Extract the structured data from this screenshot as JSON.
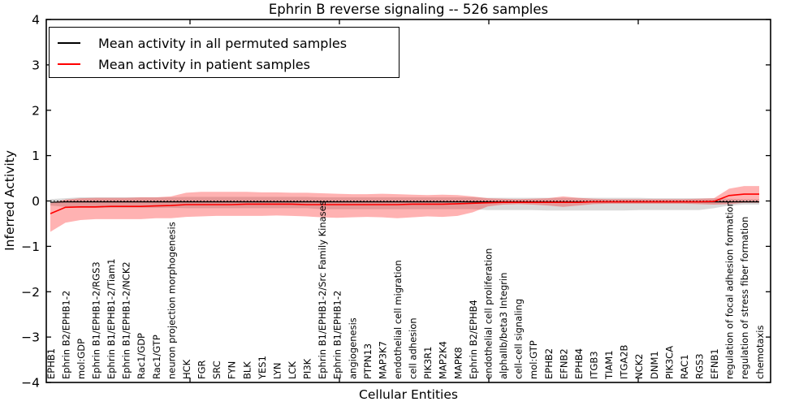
{
  "chart_data": {
    "type": "line",
    "title": "Ephrin B reverse signaling -- 526 samples",
    "xlabel": "Cellular Entities",
    "ylabel": "Inferred Activity",
    "ylim": [
      -4,
      4
    ],
    "grid": false,
    "legend_position": "upper left",
    "yticks": [
      {
        "value": 4,
        "label": "4"
      },
      {
        "value": 3,
        "label": "3"
      },
      {
        "value": 2,
        "label": "2"
      },
      {
        "value": 1,
        "label": "1"
      },
      {
        "value": 0,
        "label": "0"
      },
      {
        "value": -1,
        "label": "−1"
      },
      {
        "value": -2,
        "label": "−2"
      },
      {
        "value": -3,
        "label": "−3"
      },
      {
        "value": -4,
        "label": "−4"
      }
    ],
    "legend": [
      {
        "label": "Mean activity in all permuted samples",
        "color": "#000000"
      },
      {
        "label": "Mean activity in patient samples",
        "color": "#ff0000"
      }
    ],
    "colors": {
      "permuted_line": "#000000",
      "patient_line": "#ff0000",
      "permuted_band": "#787878",
      "patient_band": "#ff0000",
      "zero_line": "#000000"
    },
    "categories": [
      "EPHB1",
      "Ephrin B2/EPHB1-2",
      "mol:GDP",
      "Ephrin B1/EPHB1-2/RGS3",
      "Ephrin B1/EPHB1-2/Tiam1",
      "Ephrin B1/EPHB1-2/NCK2",
      "Rac1/GDP",
      "Rac1/GTP",
      "neuron projection morphogenesis",
      "HCK",
      "FGR",
      "SRC",
      "FYN",
      "BLK",
      "YES1",
      "LYN",
      "LCK",
      "PI3K",
      "Ephrin B1/EPHB1-2/Src Family Kinases",
      "Ephrin B1/EPHB1-2",
      "angiogenesis",
      "PTPN13",
      "MAP3K7",
      "endothelial cell migration",
      "cell adhesion",
      "PIK3R1",
      "MAP2K4",
      "MAPK8",
      "Ephrin B2/EPHB4",
      "endothelial cell proliferation",
      "alphaIIb/beta3 Integrin",
      "cell-cell signaling",
      "mol:GTP",
      "EPHB2",
      "EFNB2",
      "EPHB4",
      "ITGB3",
      "TIAM1",
      "ITGA2B",
      "NCK2",
      "DNM1",
      "PIK3CA",
      "RAC1",
      "RGS3",
      "EFNB1",
      "regulation of focal adhesion formation",
      "regulation of stress fiber formation",
      "chemotaxis"
    ],
    "series": [
      {
        "name": "Mean activity in all permuted samples",
        "values": [
          -0.03,
          -0.02,
          -0.02,
          -0.02,
          -0.02,
          -0.02,
          -0.02,
          -0.02,
          -0.02,
          -0.02,
          -0.02,
          -0.02,
          -0.02,
          -0.02,
          -0.02,
          -0.02,
          -0.02,
          -0.02,
          -0.02,
          -0.02,
          -0.02,
          -0.02,
          -0.02,
          -0.02,
          -0.02,
          -0.02,
          -0.02,
          -0.02,
          -0.02,
          -0.02,
          -0.02,
          -0.02,
          -0.02,
          -0.02,
          -0.02,
          -0.02,
          -0.02,
          -0.02,
          -0.02,
          -0.02,
          -0.02,
          -0.02,
          -0.02,
          -0.02,
          -0.02,
          -0.02,
          -0.02,
          -0.02
        ]
      },
      {
        "name": "Mean activity in patient samples",
        "values": [
          -0.28,
          -0.14,
          -0.13,
          -0.13,
          -0.12,
          -0.12,
          -0.12,
          -0.11,
          -0.1,
          -0.08,
          -0.08,
          -0.08,
          -0.08,
          -0.07,
          -0.07,
          -0.07,
          -0.07,
          -0.08,
          -0.08,
          -0.08,
          -0.08,
          -0.08,
          -0.08,
          -0.08,
          -0.07,
          -0.07,
          -0.07,
          -0.06,
          -0.05,
          -0.04,
          -0.03,
          -0.03,
          -0.03,
          -0.03,
          -0.03,
          -0.03,
          -0.02,
          -0.02,
          -0.02,
          -0.02,
          -0.02,
          -0.02,
          -0.02,
          -0.02,
          -0.01,
          0.12,
          0.15,
          0.15
        ]
      }
    ],
    "bands": {
      "permuted_upper": [
        0.04,
        0.06,
        0.08,
        0.08,
        0.08,
        0.08,
        0.08,
        0.08,
        0.08,
        0.09,
        0.09,
        0.09,
        0.09,
        0.09,
        0.09,
        0.09,
        0.09,
        0.09,
        0.08,
        0.08,
        0.08,
        0.08,
        0.08,
        0.08,
        0.08,
        0.08,
        0.08,
        0.08,
        0.08,
        0.07,
        0.07,
        0.07,
        0.07,
        0.07,
        0.07,
        0.07,
        0.07,
        0.07,
        0.07,
        0.07,
        0.06,
        0.06,
        0.06,
        0.06,
        0.06,
        0.05,
        0.04,
        0.04
      ],
      "permuted_lower": [
        -0.1,
        -0.13,
        -0.15,
        -0.15,
        -0.15,
        -0.15,
        -0.15,
        -0.15,
        -0.15,
        -0.16,
        -0.16,
        -0.16,
        -0.16,
        -0.16,
        -0.16,
        -0.16,
        -0.16,
        -0.16,
        -0.18,
        -0.18,
        -0.18,
        -0.18,
        -0.18,
        -0.18,
        -0.18,
        -0.18,
        -0.18,
        -0.18,
        -0.18,
        -0.2,
        -0.2,
        -0.2,
        -0.2,
        -0.21,
        -0.21,
        -0.21,
        -0.21,
        -0.21,
        -0.21,
        -0.2,
        -0.2,
        -0.2,
        -0.2,
        -0.2,
        -0.16,
        -0.1,
        -0.08,
        -0.08
      ],
      "patient_upper": [
        -0.05,
        0.03,
        0.06,
        0.07,
        0.07,
        0.07,
        0.08,
        0.08,
        0.1,
        0.18,
        0.2,
        0.2,
        0.2,
        0.2,
        0.19,
        0.19,
        0.18,
        0.18,
        0.17,
        0.16,
        0.15,
        0.15,
        0.16,
        0.15,
        0.14,
        0.13,
        0.14,
        0.13,
        0.1,
        0.06,
        0.05,
        0.04,
        0.05,
        0.06,
        0.1,
        0.07,
        0.05,
        0.04,
        0.04,
        0.04,
        0.04,
        0.04,
        0.04,
        0.05,
        0.06,
        0.27,
        0.33,
        0.33
      ],
      "patient_lower": [
        -0.68,
        -0.48,
        -0.42,
        -0.4,
        -0.4,
        -0.4,
        -0.4,
        -0.38,
        -0.38,
        -0.35,
        -0.34,
        -0.33,
        -0.33,
        -0.33,
        -0.33,
        -0.32,
        -0.33,
        -0.34,
        -0.36,
        -0.37,
        -0.36,
        -0.35,
        -0.36,
        -0.38,
        -0.36,
        -0.34,
        -0.35,
        -0.33,
        -0.25,
        -0.12,
        -0.08,
        -0.07,
        -0.08,
        -0.1,
        -0.13,
        -0.1,
        -0.07,
        -0.06,
        -0.06,
        -0.06,
        -0.06,
        -0.06,
        -0.06,
        -0.07,
        -0.08,
        -0.07,
        -0.04,
        -0.04
      ]
    },
    "zero_reference_line": true
  }
}
